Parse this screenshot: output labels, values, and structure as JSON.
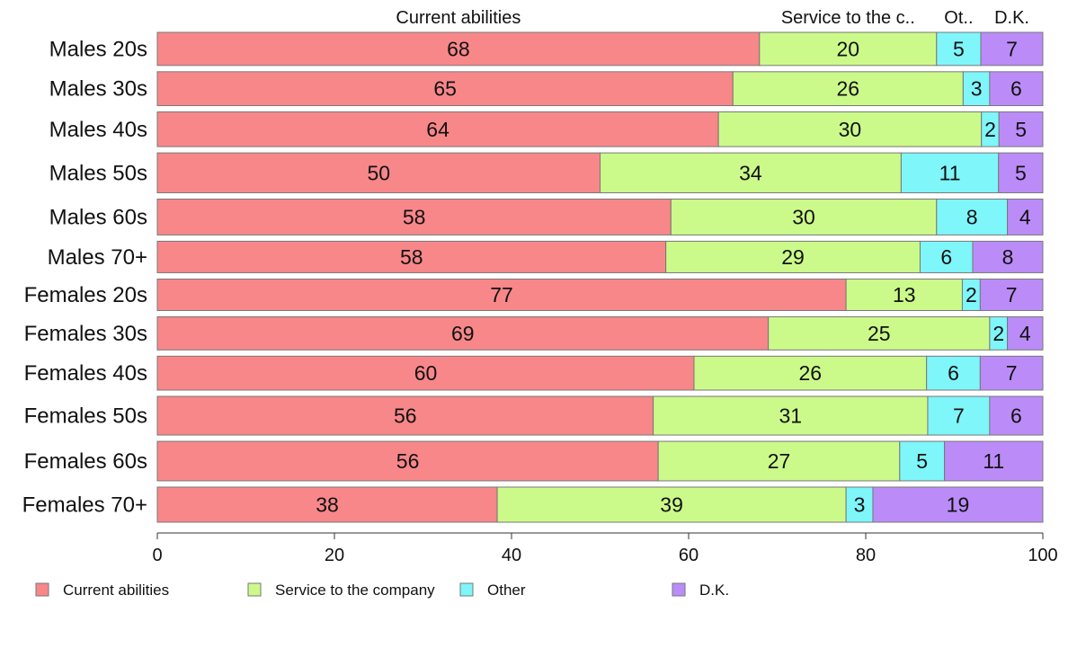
{
  "chart_data": {
    "type": "bar",
    "orientation": "horizontal",
    "stacked": true,
    "categories": [
      "Males 20s",
      "Males 30s",
      "Males 40s",
      "Males 50s",
      "Males 60s",
      "Males 70+",
      "Females 20s",
      "Females 30s",
      "Females 40s",
      "Females 50s",
      "Females 60s",
      "Females 70+"
    ],
    "bar_weights": [
      0.83,
      0.85,
      0.87,
      1.0,
      0.9,
      0.79,
      0.79,
      0.83,
      0.85,
      0.97,
      0.99,
      0.88
    ],
    "series": [
      {
        "name": "Current abilities",
        "header": "Current abilities",
        "color": "#f8878a",
        "values": [
          68,
          65,
          64,
          50,
          58,
          58,
          77,
          69,
          60,
          56,
          56,
          38
        ]
      },
      {
        "name": "Service to the company",
        "header": "Service to the c..",
        "color": "#ccfa8a",
        "values": [
          20,
          26,
          30,
          34,
          30,
          29,
          13,
          25,
          26,
          31,
          27,
          39
        ]
      },
      {
        "name": "Other",
        "header": "Ot..",
        "color": "#7ef6fa",
        "values": [
          5,
          3,
          2,
          11,
          8,
          6,
          2,
          2,
          6,
          7,
          5,
          3
        ]
      },
      {
        "name": "D.K.",
        "header": "D.K.",
        "color": "#bb8cf8",
        "values": [
          7,
          6,
          5,
          5,
          4,
          8,
          7,
          4,
          7,
          6,
          11,
          19
        ]
      }
    ],
    "xlim": [
      0,
      100
    ],
    "xticks": [
      0,
      20,
      40,
      60,
      80,
      100
    ],
    "legend_position": "bottom",
    "grid": false
  }
}
